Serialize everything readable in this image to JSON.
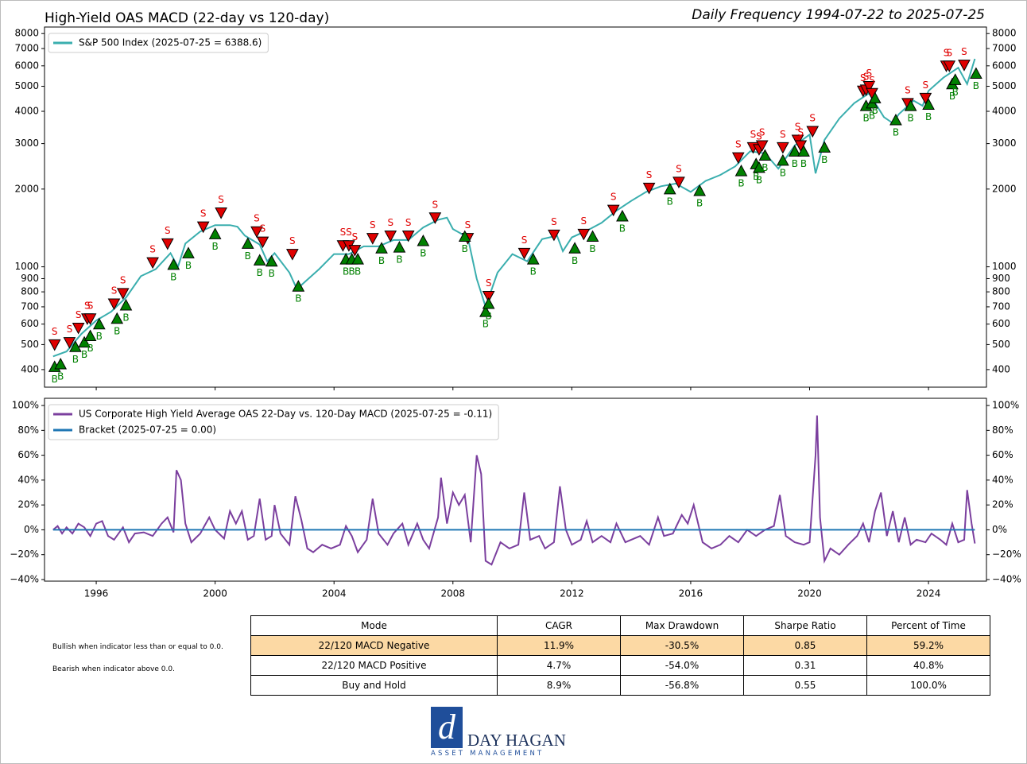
{
  "chart_data": [
    {
      "type": "line",
      "title": "High-Yield OAS MACD (22-day vs 120-day)",
      "subtitle": "Daily Frequency 1994-07-22 to 2025-07-25",
      "log_scale": true,
      "xlim": [
        1994.26,
        2025.95
      ],
      "ylim": [
        342,
        8480
      ],
      "yticks": [
        400,
        500,
        600,
        700,
        800,
        900,
        1000,
        2000,
        3000,
        4000,
        5000,
        6000,
        7000,
        8000
      ],
      "legend": "upper left",
      "series": [
        {
          "name": "S&P 500 Index (2025-07-25 = 6388.6)",
          "color": "#3aaeae",
          "x": [
            1994.55,
            1995.0,
            1995.5,
            1996.0,
            1996.5,
            1997.0,
            1997.5,
            1998.0,
            1998.5,
            1998.75,
            1999.0,
            1999.5,
            2000.0,
            2000.5,
            2000.75,
            2001.0,
            2001.5,
            2001.75,
            2002.0,
            2002.5,
            2002.75,
            2003.0,
            2003.5,
            2004.0,
            2004.5,
            2005.0,
            2005.5,
            2006.0,
            2006.5,
            2007.0,
            2007.5,
            2007.8,
            2008.0,
            2008.5,
            2008.8,
            2009.1,
            2009.5,
            2010.0,
            2010.5,
            2011.0,
            2011.5,
            2011.7,
            2012.0,
            2012.5,
            2013.0,
            2013.5,
            2014.0,
            2014.5,
            2015.0,
            2015.5,
            2016.0,
            2016.5,
            2017.0,
            2017.5,
            2018.0,
            2018.5,
            2018.95,
            2019.5,
            2020.0,
            2020.2,
            2020.5,
            2021.0,
            2021.5,
            2022.0,
            2022.5,
            2022.8,
            2023.0,
            2023.5,
            2023.8,
            2024.0,
            2024.5,
            2025.0,
            2025.3,
            2025.56
          ],
          "values": [
            450,
            470,
            550,
            620,
            670,
            760,
            920,
            980,
            1130,
            1000,
            1230,
            1370,
            1450,
            1450,
            1430,
            1320,
            1220,
            1050,
            1130,
            950,
            820,
            870,
            980,
            1120,
            1120,
            1200,
            1200,
            1270,
            1270,
            1420,
            1520,
            1550,
            1400,
            1300,
            900,
            700,
            950,
            1120,
            1050,
            1280,
            1320,
            1150,
            1300,
            1380,
            1480,
            1650,
            1800,
            1950,
            2050,
            2100,
            1950,
            2150,
            2270,
            2450,
            2800,
            2750,
            2400,
            2950,
            3250,
            2300,
            3100,
            3750,
            4300,
            4700,
            3800,
            3600,
            3900,
            4400,
            4200,
            4800,
            5400,
            5900,
            5100,
            6388.6
          ]
        }
      ],
      "markers": [
        {
          "name": "S",
          "color": "#e00000",
          "shape": "down",
          "x": [
            1994.6,
            1995.1,
            1995.4,
            1995.7,
            1995.8,
            1996.6,
            1996.9,
            1997.9,
            1998.4,
            1999.6,
            2000.2,
            2001.4,
            2001.6,
            2002.6,
            2004.3,
            2004.5,
            2004.7,
            2005.3,
            2005.9,
            2006.5,
            2007.4,
            2008.5,
            2009.2,
            2010.4,
            2011.4,
            2012.4,
            2013.4,
            2014.6,
            2015.6,
            2017.6,
            2018.1,
            2018.3,
            2018.4,
            2019.1,
            2019.6,
            2019.7,
            2020.1,
            2021.8,
            2021.9,
            2022.0,
            2022.1,
            2023.3,
            2023.9,
            2024.6,
            2024.7,
            2025.2
          ],
          "values": [
            500,
            510,
            580,
            630,
            630,
            720,
            790,
            1040,
            1230,
            1430,
            1620,
            1370,
            1250,
            1120,
            1210,
            1210,
            1160,
            1290,
            1320,
            1320,
            1550,
            1290,
            770,
            1130,
            1330,
            1340,
            1660,
            2020,
            2130,
            2650,
            2900,
            2850,
            2950,
            2900,
            3100,
            2950,
            3350,
            4800,
            4850,
            5000,
            4700,
            4300,
            4500,
            6000,
            6000,
            6050
          ]
        },
        {
          "name": "B",
          "color": "#008000",
          "shape": "up",
          "x": [
            1994.6,
            1994.8,
            1995.3,
            1995.6,
            1995.8,
            1996.1,
            1996.7,
            1997.0,
            1998.6,
            1999.1,
            2000.0,
            2001.1,
            2001.5,
            2001.9,
            2002.8,
            2004.4,
            2004.6,
            2004.8,
            2005.6,
            2006.2,
            2007.0,
            2008.4,
            2009.1,
            2009.2,
            2010.7,
            2012.1,
            2012.7,
            2013.7,
            2015.3,
            2016.3,
            2017.7,
            2018.2,
            2018.3,
            2018.5,
            2019.1,
            2019.5,
            2019.8,
            2020.5,
            2021.9,
            2022.1,
            2022.2,
            2022.9,
            2023.4,
            2024.0,
            2024.8,
            2024.9,
            2025.6
          ],
          "values": [
            410,
            420,
            490,
            510,
            540,
            600,
            630,
            710,
            1020,
            1130,
            1340,
            1230,
            1060,
            1050,
            840,
            1070,
            1070,
            1070,
            1180,
            1190,
            1260,
            1310,
            670,
            720,
            1070,
            1180,
            1310,
            1570,
            2000,
            1970,
            2350,
            2500,
            2420,
            2700,
            2580,
            2800,
            2800,
            2900,
            4200,
            4300,
            4500,
            3700,
            4200,
            4250,
            5100,
            5300,
            5600
          ]
        }
      ]
    },
    {
      "type": "line",
      "xlim": [
        1994.26,
        2025.95
      ],
      "ylim": [
        -41.3,
        105.8
      ],
      "xticks": [
        1996,
        2000,
        2004,
        2008,
        2012,
        2016,
        2020,
        2024
      ],
      "yticks": [
        {
          "value": -40,
          "label": "−40%"
        },
        {
          "value": -20,
          "label": "−20%"
        },
        {
          "value": 0,
          "label": "0%"
        },
        {
          "value": 20,
          "label": "20%"
        },
        {
          "value": 40,
          "label": "40%"
        },
        {
          "value": 60,
          "label": "60%"
        },
        {
          "value": 80,
          "label": "80%"
        },
        {
          "value": 100,
          "label": "100%"
        }
      ],
      "legend": "upper left",
      "series": [
        {
          "name": "US Corporate High Yield Average OAS 22-Day vs. 120-Day MACD (2025-07-25 = -0.11)",
          "color": "#7b3f9e",
          "x": [
            1994.55,
            1994.7,
            1994.85,
            1995.0,
            1995.2,
            1995.4,
            1995.6,
            1995.8,
            1996.0,
            1996.2,
            1996.4,
            1996.6,
            1996.9,
            1997.1,
            1997.3,
            1997.6,
            1997.9,
            1998.2,
            1998.4,
            1998.6,
            1998.7,
            1998.85,
            1999.0,
            1999.2,
            1999.5,
            1999.8,
            2000.0,
            2000.3,
            2000.5,
            2000.7,
            2000.9,
            2001.1,
            2001.3,
            2001.5,
            2001.7,
            2001.9,
            2002.0,
            2002.2,
            2002.5,
            2002.7,
            2002.9,
            2003.1,
            2003.3,
            2003.6,
            2003.9,
            2004.2,
            2004.4,
            2004.6,
            2004.8,
            2005.1,
            2005.3,
            2005.5,
            2005.8,
            2006.0,
            2006.3,
            2006.5,
            2006.8,
            2007.0,
            2007.2,
            2007.5,
            2007.6,
            2007.8,
            2008.0,
            2008.2,
            2008.4,
            2008.6,
            2008.8,
            2008.95,
            2009.1,
            2009.3,
            2009.6,
            2009.9,
            2010.2,
            2010.4,
            2010.6,
            2010.9,
            2011.1,
            2011.4,
            2011.6,
            2011.8,
            2012.0,
            2012.3,
            2012.5,
            2012.7,
            2013.0,
            2013.3,
            2013.5,
            2013.8,
            2014.0,
            2014.3,
            2014.6,
            2014.9,
            2015.1,
            2015.4,
            2015.7,
            2015.9,
            2016.1,
            2016.4,
            2016.7,
            2017.0,
            2017.3,
            2017.6,
            2017.9,
            2018.2,
            2018.5,
            2018.8,
            2019.0,
            2019.2,
            2019.5,
            2019.8,
            2020.0,
            2020.2,
            2020.25,
            2020.35,
            2020.5,
            2020.7,
            2021.0,
            2021.3,
            2021.6,
            2021.8,
            2022.0,
            2022.2,
            2022.4,
            2022.6,
            2022.8,
            2023.0,
            2023.2,
            2023.4,
            2023.6,
            2023.9,
            2024.1,
            2024.4,
            2024.6,
            2024.8,
            2025.0,
            2025.2,
            2025.3,
            2025.45,
            2025.56
          ],
          "values": [
            0,
            3,
            -3,
            2,
            -3,
            5,
            2,
            -5,
            5,
            7,
            -5,
            -8,
            2,
            -10,
            -3,
            -2,
            -5,
            5,
            10,
            -2,
            48,
            40,
            5,
            -10,
            -3,
            10,
            0,
            -7,
            15,
            5,
            15,
            -8,
            -5,
            25,
            -8,
            -5,
            20,
            -3,
            -12,
            27,
            8,
            -15,
            -18,
            -12,
            -15,
            -12,
            3,
            -5,
            -18,
            -8,
            25,
            -3,
            -12,
            -3,
            5,
            -12,
            5,
            -8,
            -15,
            10,
            42,
            5,
            30,
            20,
            28,
            -10,
            60,
            45,
            -25,
            -28,
            -10,
            -15,
            -12,
            30,
            -8,
            -5,
            -15,
            -10,
            35,
            0,
            -12,
            -8,
            7,
            -10,
            -5,
            -10,
            5,
            -10,
            -8,
            -5,
            -12,
            10,
            -5,
            -3,
            12,
            5,
            20,
            -10,
            -15,
            -12,
            -5,
            -10,
            0,
            -5,
            0,
            3,
            28,
            -5,
            -10,
            -12,
            -10,
            60,
            92,
            10,
            -25,
            -15,
            -20,
            -12,
            -5,
            5,
            -10,
            15,
            30,
            -5,
            15,
            -10,
            10,
            -12,
            -8,
            -10,
            -3,
            -8,
            -12,
            5,
            -10,
            -8,
            32,
            5,
            -11
          ]
        },
        {
          "name": "Bracket (2025-07-25 = 0.00)",
          "color": "#1f77b4",
          "x": [
            1994.55,
            2025.56
          ],
          "values": [
            0,
            0
          ]
        }
      ]
    }
  ],
  "table": {
    "header": [
      "Mode",
      "CAGR",
      "Max Drawdown",
      "Sharpe Ratio",
      "Percent of Time"
    ],
    "rows": [
      [
        "22/120 MACD Negative",
        "11.9%",
        "-30.5%",
        "0.85",
        "59.2%"
      ],
      [
        "22/120 MACD Positive",
        "4.7%",
        "-54.0%",
        "0.31",
        "40.8%"
      ],
      [
        "Buy and Hold",
        "8.9%",
        "-56.8%",
        "0.55",
        "100.0%"
      ]
    ]
  },
  "notes": [
    "Bullish when indicator less than or equal to 0.0.",
    "Bearish when indicator above 0.0."
  ],
  "logo": {
    "mark": "d",
    "name": "DAY HAGAN",
    "tagline": "ASSET MANAGEMENT"
  }
}
